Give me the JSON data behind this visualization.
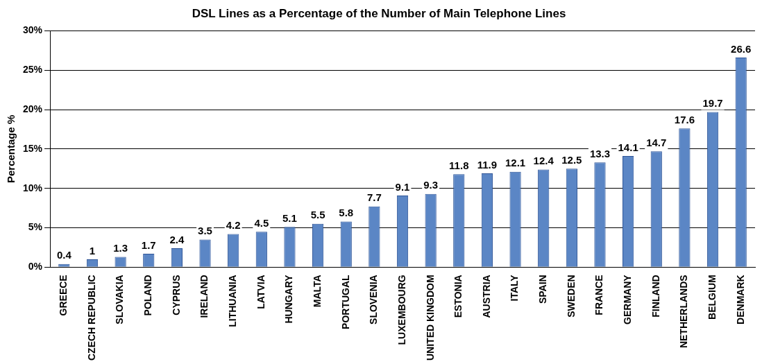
{
  "chart_data": {
    "type": "bar",
    "title": "DSL Lines as a Percentage of the Number of Main Telephone Lines",
    "ylabel": "Percentage %",
    "categories": [
      "GREECE",
      "CZECH REPUBLIC",
      "SLOVAKIA",
      "POLAND",
      "CYPRUS",
      "IRELAND",
      "LITHUANIA",
      "LATVIA",
      "HUNGARY",
      "MALTA",
      "PORTUGAL",
      "SLOVENIA",
      "LUXEMBOURG",
      "UNITED KINGDOM",
      "ESTONIA",
      "AUSTRIA",
      "ITALY",
      "SPAIN",
      "SWEDEN",
      "FRANCE",
      "GERMANY",
      "FINLAND",
      "NETHERLANDS",
      "BELGIUM",
      "DENMARK"
    ],
    "values": [
      0.4,
      1,
      1.3,
      1.7,
      2.4,
      3.5,
      4.2,
      4.5,
      5.1,
      5.5,
      5.8,
      7.7,
      9.1,
      9.3,
      11.8,
      11.9,
      12.1,
      12.4,
      12.5,
      13.3,
      14.1,
      14.7,
      17.6,
      19.7,
      26.6
    ],
    "color": "#5b86c5",
    "ylim": [
      0,
      30
    ],
    "yticks": [
      {
        "value": 0,
        "label": "0%"
      },
      {
        "value": 5,
        "label": "5%"
      },
      {
        "value": 10,
        "label": "10%"
      },
      {
        "value": 15,
        "label": "15%"
      },
      {
        "value": 20,
        "label": "20%"
      },
      {
        "value": 25,
        "label": "25%"
      },
      {
        "value": 30,
        "label": "30%"
      }
    ],
    "grid": "y",
    "data_labels": true,
    "legend": false
  }
}
